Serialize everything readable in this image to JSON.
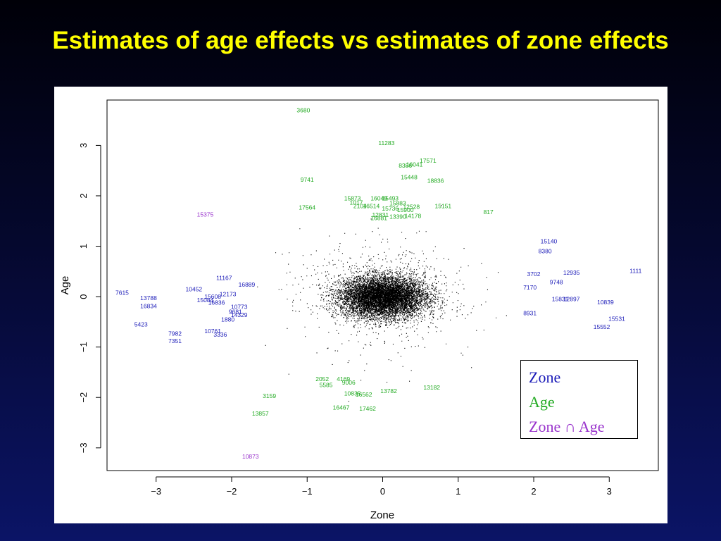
{
  "slide": {
    "title": "Estimates of age effects vs estimates of zone effects"
  },
  "chart_data": {
    "type": "scatter",
    "title": "",
    "xlabel": "Zone",
    "ylabel": "Age",
    "xlim": [
      -3.65,
      3.65
    ],
    "ylim": [
      -3.45,
      3.9
    ],
    "xticks": [
      -3,
      -2,
      -1,
      0,
      1,
      2,
      3
    ],
    "yticks": [
      -3,
      -2,
      -1,
      0,
      1,
      2,
      3
    ],
    "grid": false,
    "legend_position": "bottom-right",
    "background_cloud": {
      "description": "dense cloud of unlabeled black points centred at (0, 0)",
      "color": "#000000"
    },
    "legend": [
      {
        "label": "Zone",
        "color": "#1a1ab8"
      },
      {
        "label": "Age",
        "color": "#22aa22"
      },
      {
        "label_prefix": "Zone ",
        "symbol": "∩",
        "label_suffix": " Age",
        "color": "#9933cc"
      }
    ],
    "series": [
      {
        "name": "Zone",
        "color": "#1a1ab8",
        "points": [
          {
            "x": -3.45,
            "y": 0.08,
            "label": "7615"
          },
          {
            "x": -3.1,
            "y": -0.03,
            "label": "13788"
          },
          {
            "x": -3.1,
            "y": -0.19,
            "label": "16834"
          },
          {
            "x": -3.2,
            "y": -0.55,
            "label": "5423"
          },
          {
            "x": -2.75,
            "y": -0.73,
            "label": "7982"
          },
          {
            "x": -2.75,
            "y": -0.88,
            "label": "7351"
          },
          {
            "x": -2.5,
            "y": 0.15,
            "label": "10452"
          },
          {
            "x": -2.1,
            "y": 0.37,
            "label": "11167"
          },
          {
            "x": -1.8,
            "y": 0.24,
            "label": "16889"
          },
          {
            "x": -2.35,
            "y": -0.07,
            "label": "15084"
          },
          {
            "x": -2.2,
            "y": -0.12,
            "label": "16836"
          },
          {
            "x": -2.05,
            "y": 0.05,
            "label": "12173"
          },
          {
            "x": -2.25,
            "y": 0.0,
            "label": "15608"
          },
          {
            "x": -1.9,
            "y": -0.2,
            "label": "10773"
          },
          {
            "x": -1.95,
            "y": -0.3,
            "label": "9681"
          },
          {
            "x": -1.9,
            "y": -0.36,
            "label": "14329"
          },
          {
            "x": -2.05,
            "y": -0.45,
            "label": "1880"
          },
          {
            "x": -2.25,
            "y": -0.68,
            "label": "10761"
          },
          {
            "x": -2.15,
            "y": -0.75,
            "label": "3336"
          },
          {
            "x": 2.2,
            "y": 1.1,
            "label": "15140"
          },
          {
            "x": 2.15,
            "y": 0.9,
            "label": "8380"
          },
          {
            "x": 2.0,
            "y": 0.45,
            "label": "3702"
          },
          {
            "x": 2.5,
            "y": 0.48,
            "label": "12935"
          },
          {
            "x": 2.3,
            "y": 0.29,
            "label": "9748"
          },
          {
            "x": 1.95,
            "y": 0.18,
            "label": "7170"
          },
          {
            "x": 2.35,
            "y": -0.05,
            "label": "15831"
          },
          {
            "x": 2.5,
            "y": -0.05,
            "label": "12897"
          },
          {
            "x": 1.95,
            "y": -0.33,
            "label": "8931"
          },
          {
            "x": 2.95,
            "y": -0.11,
            "label": "10839"
          },
          {
            "x": 3.1,
            "y": -0.44,
            "label": "15531"
          },
          {
            "x": 2.9,
            "y": -0.6,
            "label": "15552"
          },
          {
            "x": 3.35,
            "y": 0.51,
            "label": "1111"
          }
        ]
      },
      {
        "name": "Age",
        "color": "#22aa22",
        "points": [
          {
            "x": -1.05,
            "y": 3.7,
            "label": "3680"
          },
          {
            "x": 0.05,
            "y": 3.05,
            "label": "11283"
          },
          {
            "x": 0.6,
            "y": 2.7,
            "label": "17571"
          },
          {
            "x": 0.3,
            "y": 2.6,
            "label": "8386"
          },
          {
            "x": 0.42,
            "y": 2.62,
            "label": "16041"
          },
          {
            "x": 0.35,
            "y": 2.37,
            "label": "15448"
          },
          {
            "x": 0.7,
            "y": 2.3,
            "label": "18836"
          },
          {
            "x": -1.0,
            "y": 2.32,
            "label": "9741"
          },
          {
            "x": -0.4,
            "y": 1.95,
            "label": "15873"
          },
          {
            "x": -0.35,
            "y": 1.87,
            "label": "1017"
          },
          {
            "x": -0.05,
            "y": 1.95,
            "label": "16049"
          },
          {
            "x": 0.1,
            "y": 1.95,
            "label": "15493"
          },
          {
            "x": 0.2,
            "y": 1.85,
            "label": "15883"
          },
          {
            "x": -0.3,
            "y": 1.8,
            "label": "2104"
          },
          {
            "x": -0.15,
            "y": 1.8,
            "label": "16514"
          },
          {
            "x": 0.1,
            "y": 1.75,
            "label": "15736"
          },
          {
            "x": 0.38,
            "y": 1.78,
            "label": "12528"
          },
          {
            "x": 0.3,
            "y": 1.72,
            "label": "15900"
          },
          {
            "x": -1.0,
            "y": 1.77,
            "label": "17564"
          },
          {
            "x": 0.8,
            "y": 1.8,
            "label": "15151"
          },
          {
            "x": 1.4,
            "y": 1.68,
            "label": "817"
          },
          {
            "x": -0.03,
            "y": 1.62,
            "label": "12831"
          },
          {
            "x": -0.05,
            "y": 1.56,
            "label": "16881"
          },
          {
            "x": 0.2,
            "y": 1.59,
            "label": "13390"
          },
          {
            "x": 0.4,
            "y": 1.6,
            "label": "14178"
          },
          {
            "x": -0.8,
            "y": -1.63,
            "label": "2052"
          },
          {
            "x": -0.52,
            "y": -1.63,
            "label": "4169"
          },
          {
            "x": -0.75,
            "y": -1.75,
            "label": "5585"
          },
          {
            "x": -0.45,
            "y": -1.7,
            "label": "9006"
          },
          {
            "x": -0.4,
            "y": -1.92,
            "label": "10835"
          },
          {
            "x": -0.25,
            "y": -1.94,
            "label": "16562"
          },
          {
            "x": 0.08,
            "y": -1.87,
            "label": "13782"
          },
          {
            "x": 0.65,
            "y": -1.8,
            "label": "13182"
          },
          {
            "x": -1.5,
            "y": -1.97,
            "label": "3159"
          },
          {
            "x": -0.55,
            "y": -2.2,
            "label": "16467"
          },
          {
            "x": -0.2,
            "y": -2.22,
            "label": "17462"
          },
          {
            "x": -1.62,
            "y": -2.32,
            "label": "13857"
          }
        ]
      },
      {
        "name": "Zone ∩ Age",
        "color": "#9933cc",
        "points": [
          {
            "x": -2.35,
            "y": 1.63,
            "label": "15375"
          },
          {
            "x": -1.75,
            "y": -3.17,
            "label": "10873"
          }
        ]
      }
    ]
  }
}
